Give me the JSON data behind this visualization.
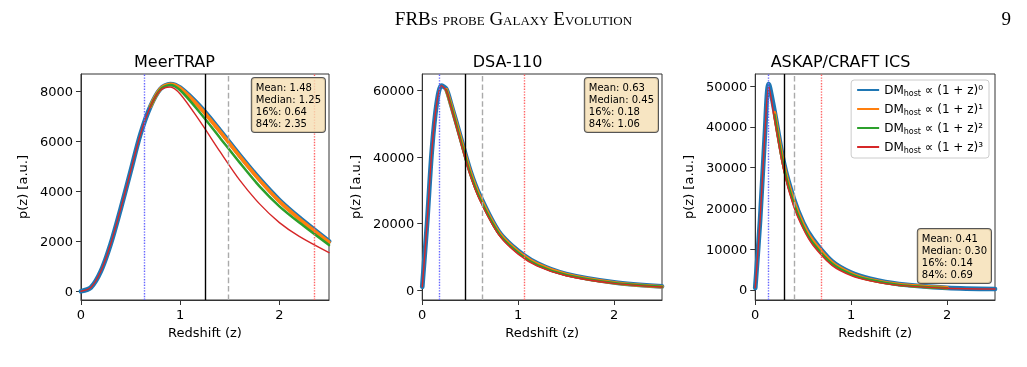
{
  "chart_data": [
    {
      "type": "line",
      "title": "MeerTRAP",
      "xlabel": "Redshift (z)",
      "ylabel": "p(z) [a.u.]",
      "x": [
        0,
        0.1,
        0.2,
        0.3,
        0.4,
        0.5,
        0.6,
        0.7,
        0.8,
        0.9,
        1.0,
        1.2,
        1.4,
        1.6,
        1.8,
        2.0,
        2.2,
        2.5
      ],
      "series": [
        {
          "color": "#1f77b4",
          "values": [
            0,
            150,
            800,
            1900,
            3300,
            4800,
            6300,
            7400,
            8100,
            8300,
            8150,
            7400,
            6450,
            5450,
            4500,
            3650,
            2950,
            2000
          ]
        },
        {
          "color": "#ff7f0e",
          "values": [
            null,
            null,
            null,
            null,
            null,
            null,
            null,
            7400,
            8100,
            8290,
            8130,
            7350,
            6400,
            5400,
            4450,
            3600,
            2900,
            1970
          ]
        },
        {
          "color": "#2ca02c",
          "values": [
            null,
            null,
            null,
            null,
            null,
            null,
            null,
            7400,
            8080,
            8260,
            8050,
            7150,
            6150,
            5150,
            4200,
            3400,
            2750,
            1850
          ]
        },
        {
          "color": "#d62728",
          "values": [
            0,
            150,
            800,
            1900,
            3300,
            4800,
            6300,
            7400,
            8050,
            8180,
            7900,
            6800,
            5600,
            4450,
            3500,
            2750,
            2200,
            1550
          ]
        }
      ],
      "ref_lines": [
        {
          "axis": "x",
          "value": 0.64,
          "label": null,
          "color": "#6666ff",
          "line_style": "dotted"
        },
        {
          "axis": "x",
          "value": 1.25,
          "label": null,
          "color": "#000000",
          "line_style": "solid"
        },
        {
          "axis": "x",
          "value": 1.48,
          "label": null,
          "color": "#aaaaaa",
          "line_style": "dashed"
        },
        {
          "axis": "x",
          "value": 2.35,
          "label": null,
          "color": "#ff6666",
          "line_style": "dotted"
        }
      ],
      "xlim": [
        0,
        2.5
      ],
      "xticks": [
        0,
        1,
        2
      ],
      "ylim": [
        -350,
        8700
      ],
      "yticks": [
        0,
        2000,
        4000,
        6000,
        8000
      ],
      "grid": false,
      "legend": false,
      "annotations": [
        "FRBs probe Galaxy Evolution",
        "9",
        "Mean: 1.48\nMedian: 1.25\n16%: 0.64\n84%: 2.35"
      ]
    },
    {
      "type": "line",
      "title": "DSA-110",
      "xlabel": "Redshift (z)",
      "ylabel": "p(z) [a.u.]",
      "x": [
        0,
        0.05,
        0.1,
        0.15,
        0.2,
        0.25,
        0.3,
        0.4,
        0.5,
        0.6,
        0.8,
        1.0,
        1.2,
        1.5,
        2.0,
        2.5
      ],
      "series": [
        {
          "color": "#1f77b4",
          "values": [
            1000,
            20000,
            42000,
            56000,
            61500,
            60500,
            56000,
            46000,
            36000,
            28500,
            17500,
            11800,
            8000,
            4800,
            2300,
            1100
          ]
        },
        {
          "color": "#ff7f0e",
          "values": [
            null,
            null,
            null,
            null,
            null,
            60300,
            55700,
            45500,
            35500,
            28000,
            17200,
            11500,
            7800,
            4700,
            2200,
            1000
          ]
        },
        {
          "color": "#2ca02c",
          "values": [
            null,
            null,
            null,
            null,
            null,
            60200,
            55400,
            45000,
            35000,
            27500,
            16900,
            11200,
            7500,
            4500,
            2100,
            1000
          ]
        },
        {
          "color": "#d62728",
          "values": [
            1000,
            20000,
            42000,
            56000,
            61500,
            60000,
            55000,
            44500,
            34500,
            27000,
            16500,
            10800,
            7200,
            4300,
            2000,
            900
          ]
        }
      ],
      "ref_lines": [
        {
          "axis": "x",
          "value": 0.18,
          "label": null,
          "color": "#6666ff",
          "line_style": "dotted"
        },
        {
          "axis": "x",
          "value": 0.45,
          "label": null,
          "color": "#000000",
          "line_style": "solid"
        },
        {
          "axis": "x",
          "value": 0.63,
          "label": null,
          "color": "#aaaaaa",
          "line_style": "dashed"
        },
        {
          "axis": "x",
          "value": 1.06,
          "label": null,
          "color": "#ff6666",
          "line_style": "dotted"
        }
      ],
      "xlim": [
        0,
        2.5
      ],
      "xticks": [
        0,
        1,
        2
      ],
      "ylim": [
        -3000,
        65000
      ],
      "yticks": [
        0,
        20000,
        40000,
        60000
      ],
      "grid": false,
      "legend": false,
      "annotations": [
        "Mean: 0.63\nMedian: 0.45\n16%: 0.18\n84%: 1.06"
      ]
    },
    {
      "type": "line",
      "title": "ASKAP/CRAFT ICS",
      "xlabel": "Redshift (z)",
      "ylabel": "p(z) [a.u.]",
      "x": [
        0,
        0.05,
        0.1,
        0.14,
        0.2,
        0.3,
        0.4,
        0.5,
        0.6,
        0.8,
        1.0,
        1.2,
        1.5,
        2.0,
        2.5
      ],
      "series": [
        {
          "name": "DM$_{host}$ ∝ (1 + z)⁰",
          "color": "#1f77b4",
          "values": [
            500,
            17000,
            38000,
            50500,
            44000,
            31000,
            22500,
            16500,
            12500,
            7000,
            4200,
            2700,
            1400,
            500,
            200
          ]
        },
        {
          "name": "DM$_{host}$ ∝ (1 + z)¹",
          "color": "#ff7f0e",
          "values": [
            null,
            null,
            null,
            null,
            43500,
            30300,
            21800,
            16000,
            12000,
            6700,
            4000,
            2500,
            1300,
            500,
            null
          ]
        },
        {
          "name": "DM$_{host}$ ∝ (1 + z)²",
          "color": "#2ca02c",
          "values": [
            null,
            null,
            null,
            null,
            43000,
            29700,
            21200,
            15500,
            11500,
            6400,
            3800,
            2400,
            1200,
            400,
            null
          ]
        },
        {
          "name": "DM$_{host}$ ∝ (1 + z)³",
          "color": "#d62728",
          "values": [
            500,
            17000,
            38000,
            50000,
            42000,
            29000,
            20500,
            15000,
            11000,
            6000,
            3500,
            2200,
            1100,
            400,
            200
          ]
        }
      ],
      "ref_lines": [
        {
          "axis": "x",
          "value": 0.14,
          "label": null,
          "color": "#6666ff",
          "line_style": "dotted"
        },
        {
          "axis": "x",
          "value": 0.3,
          "label": null,
          "color": "#000000",
          "line_style": "solid"
        },
        {
          "axis": "x",
          "value": 0.41,
          "label": null,
          "color": "#aaaaaa",
          "line_style": "dashed"
        },
        {
          "axis": "x",
          "value": 0.69,
          "label": null,
          "color": "#ff6666",
          "line_style": "dotted"
        }
      ],
      "xlim": [
        0,
        2.5
      ],
      "xticks": [
        0,
        1,
        2
      ],
      "ylim": [
        -2500,
        53000
      ],
      "yticks": [
        0,
        10000,
        20000,
        30000,
        40000,
        50000
      ],
      "grid": false,
      "legend": "top right",
      "annotations": [
        "Mean: 0.41\nMedian: 0.30\n16%: 0.14\n84%: 0.69"
      ]
    }
  ]
}
